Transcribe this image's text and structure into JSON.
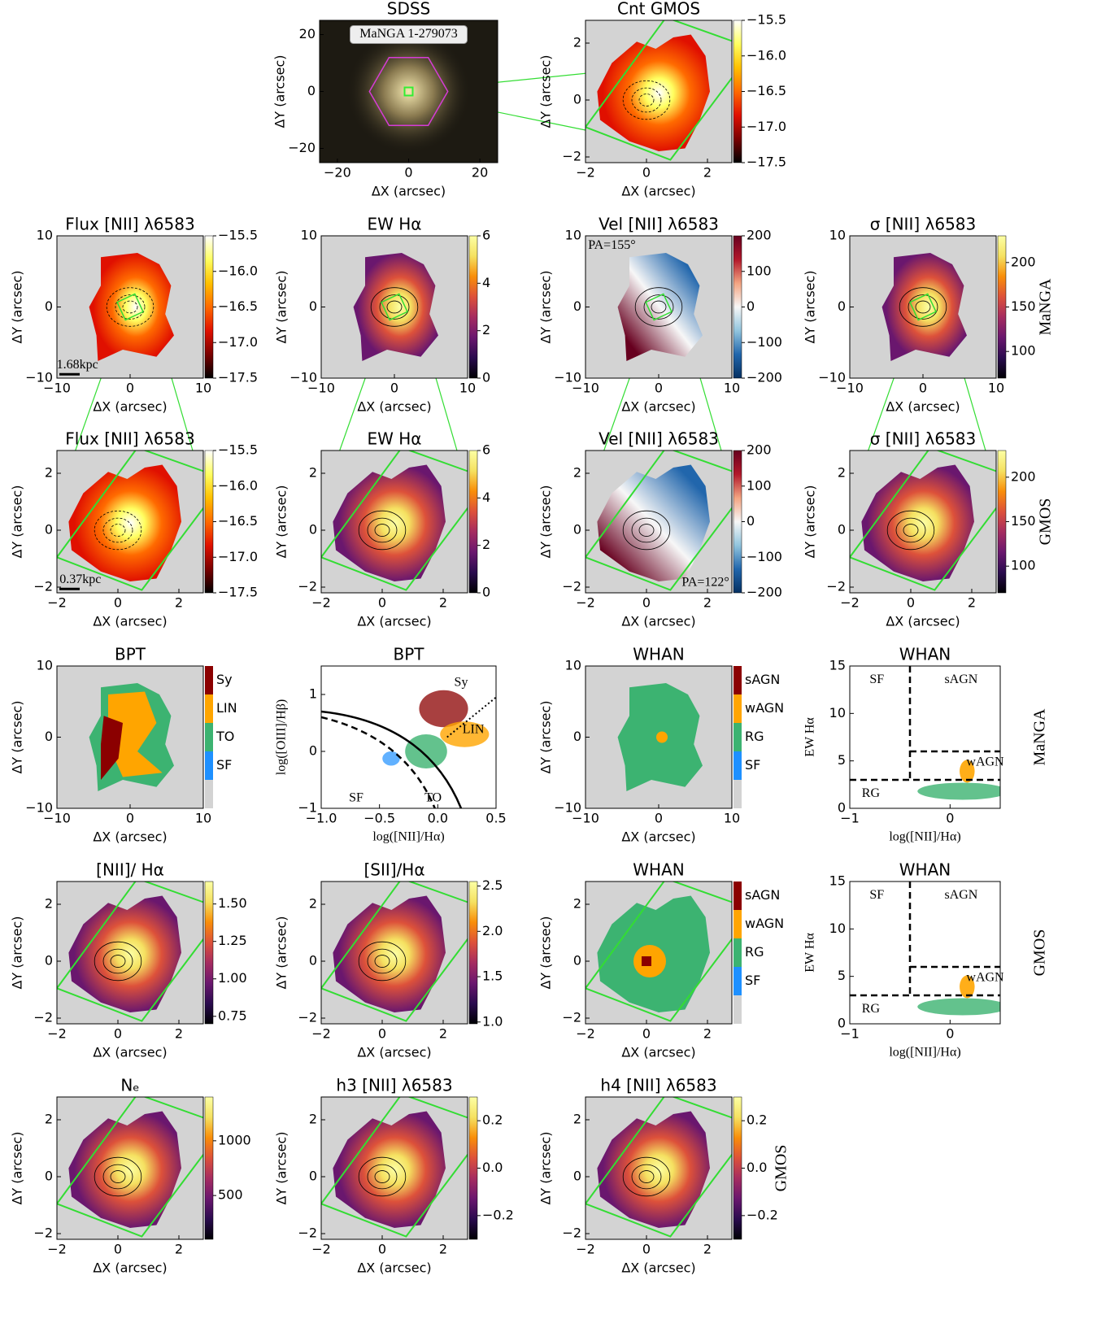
{
  "chart_data": [
    {
      "type": "image",
      "title": "SDSS",
      "xlabel": "ΔX (arcsec)",
      "ylabel": "ΔY (arcsec)",
      "xlim": [
        -25,
        25
      ],
      "ylim": [
        -25,
        25
      ],
      "xticks": [
        {
          "value": -20,
          "label": "−20"
        },
        0,
        20
      ],
      "yticks": [
        {
          "value": -20,
          "label": "−20"
        },
        0,
        20
      ],
      "annotations": [
        "MaNGA 1-279073"
      ]
    },
    {
      "type": "map",
      "title": "Cnt GMOS",
      "xlabel": "ΔX (arcsec)",
      "ylabel": "ΔY (arcsec)",
      "xlim": [
        -2,
        2.8
      ],
      "ylim": [
        -2.2,
        2.8
      ],
      "xticks": [
        {
          "value": -2,
          "label": "−2"
        },
        0,
        2
      ],
      "yticks": [
        {
          "value": -2,
          "label": "−2"
        },
        0,
        2
      ],
      "cmap": "heat",
      "colorbar": {
        "lim": [
          -17.5,
          -15.5
        ],
        "ticks": [
          {
            "value": -15.5,
            "label": "−15.5"
          },
          {
            "value": -16,
            "label": "−16.0"
          },
          {
            "value": -16.5,
            "label": "−16.5"
          },
          {
            "value": -17,
            "label": "−17.0"
          },
          {
            "value": -17.5,
            "label": "−17.5"
          }
        ]
      }
    },
    {
      "type": "map",
      "title": "Flux [NII] λ6583",
      "xlabel": "ΔX (arcsec)",
      "ylabel": "ΔY (arcsec)",
      "xlim": [
        -10,
        10
      ],
      "ylim": [
        -10,
        10
      ],
      "xticks": [
        {
          "value": -10,
          "label": "−10"
        },
        0,
        10
      ],
      "yticks": [
        {
          "value": -10,
          "label": "−10"
        },
        0,
        10
      ],
      "cmap": "heat",
      "colorbar": {
        "lim": [
          -17.5,
          -15.5
        ],
        "ticks": [
          {
            "value": -15.5,
            "label": "−15.5"
          },
          {
            "value": -16,
            "label": "−16.0"
          },
          {
            "value": -16.5,
            "label": "−16.5"
          },
          {
            "value": -17,
            "label": "−17.0"
          },
          {
            "value": -17.5,
            "label": "−17.5"
          }
        ]
      },
      "annotations": [
        "1.68kpc"
      ]
    },
    {
      "type": "map",
      "title": "EW Hα",
      "xlabel": "ΔX (arcsec)",
      "ylabel": "ΔY (arcsec)",
      "xlim": [
        -10,
        10
      ],
      "ylim": [
        -10,
        10
      ],
      "xticks": [
        {
          "value": -10,
          "label": "−10"
        },
        0,
        10
      ],
      "yticks": [
        {
          "value": -10,
          "label": "−10"
        },
        0,
        10
      ],
      "cmap": "inferno",
      "colorbar": {
        "lim": [
          0,
          6
        ],
        "ticks": [
          0,
          2,
          4,
          6
        ]
      }
    },
    {
      "type": "map",
      "title": "Vel [NII] λ6583",
      "xlabel": "ΔX (arcsec)",
      "ylabel": "ΔY (arcsec)",
      "xlim": [
        -10,
        10
      ],
      "ylim": [
        -10,
        10
      ],
      "xticks": [
        {
          "value": -10,
          "label": "−10"
        },
        0,
        10
      ],
      "yticks": [
        {
          "value": -10,
          "label": "−10"
        },
        0,
        10
      ],
      "cmap": "rdbu",
      "colorbar": {
        "lim": [
          -200,
          200
        ],
        "ticks": [
          {
            "value": -200,
            "label": "−200"
          },
          {
            "value": -100,
            "label": "−100"
          },
          0,
          100,
          200
        ]
      },
      "annotations": [
        "PA=155°"
      ]
    },
    {
      "type": "map",
      "title": "σ [NII] λ6583",
      "xlabel": "ΔX (arcsec)",
      "ylabel": "ΔY (arcsec)",
      "xlim": [
        -10,
        10
      ],
      "ylim": [
        -10,
        10
      ],
      "xticks": [
        {
          "value": -10,
          "label": "−10"
        },
        0,
        10
      ],
      "yticks": [
        {
          "value": -10,
          "label": "−10"
        },
        0,
        10
      ],
      "cmap": "inferno",
      "colorbar": {
        "lim": [
          70,
          230
        ],
        "ticks": [
          100,
          150,
          200
        ]
      },
      "side_label": "MaNGA"
    },
    {
      "type": "map",
      "title": "Flux [NII] λ6583",
      "xlabel": "ΔX (arcsec)",
      "ylabel": "ΔY (arcsec)",
      "xlim": [
        -2,
        2.8
      ],
      "ylim": [
        -2.2,
        2.8
      ],
      "xticks": [
        {
          "value": -2,
          "label": "−2"
        },
        0,
        2
      ],
      "yticks": [
        {
          "value": -2,
          "label": "−2"
        },
        0,
        2
      ],
      "cmap": "heat",
      "colorbar": {
        "lim": [
          -17.5,
          -15.5
        ],
        "ticks": [
          {
            "value": -15.5,
            "label": "−15.5"
          },
          {
            "value": -16,
            "label": "−16.0"
          },
          {
            "value": -16.5,
            "label": "−16.5"
          },
          {
            "value": -17,
            "label": "−17.0"
          },
          {
            "value": -17.5,
            "label": "−17.5"
          }
        ]
      },
      "annotations": [
        "0.37kpc"
      ]
    },
    {
      "type": "map",
      "title": "EW Hα",
      "xlabel": "ΔX (arcsec)",
      "ylabel": "ΔY (arcsec)",
      "xlim": [
        -2,
        2.8
      ],
      "ylim": [
        -2.2,
        2.8
      ],
      "xticks": [
        {
          "value": -2,
          "label": "−2"
        },
        0,
        2
      ],
      "yticks": [
        {
          "value": -2,
          "label": "−2"
        },
        0,
        2
      ],
      "cmap": "inferno",
      "colorbar": {
        "lim": [
          0,
          6
        ],
        "ticks": [
          0,
          2,
          4,
          6
        ]
      }
    },
    {
      "type": "map",
      "title": "Vel [NII] λ6583",
      "xlabel": "ΔX (arcsec)",
      "ylabel": "ΔY (arcsec)",
      "xlim": [
        -2,
        2.8
      ],
      "ylim": [
        -2.2,
        2.8
      ],
      "xticks": [
        {
          "value": -2,
          "label": "−2"
        },
        0,
        2
      ],
      "yticks": [
        {
          "value": -2,
          "label": "−2"
        },
        0,
        2
      ],
      "cmap": "rdbu",
      "colorbar": {
        "lim": [
          -200,
          200
        ],
        "ticks": [
          {
            "value": -200,
            "label": "−200"
          },
          {
            "value": -100,
            "label": "−100"
          },
          0,
          100,
          200
        ]
      },
      "annotations": [
        "PA=122°"
      ]
    },
    {
      "type": "map",
      "title": "σ [NII] λ6583",
      "xlabel": "ΔX (arcsec)",
      "ylabel": "ΔY (arcsec)",
      "xlim": [
        -2,
        2.8
      ],
      "ylim": [
        -2.2,
        2.8
      ],
      "xticks": [
        {
          "value": -2,
          "label": "−2"
        },
        0,
        2
      ],
      "yticks": [
        {
          "value": -2,
          "label": "−2"
        },
        0,
        2
      ],
      "cmap": "inferno",
      "colorbar": {
        "lim": [
          70,
          230
        ],
        "ticks": [
          100,
          150,
          200
        ]
      },
      "side_label": "GMOS"
    },
    {
      "type": "classmap",
      "title": "BPT",
      "xlabel": "ΔX (arcsec)",
      "ylabel": "ΔY (arcsec)",
      "xlim": [
        -10,
        10
      ],
      "ylim": [
        -10,
        10
      ],
      "xticks": [
        {
          "value": -10,
          "label": "−10"
        },
        0,
        10
      ],
      "yticks": [
        {
          "value": -10,
          "label": "−10"
        },
        0,
        10
      ],
      "classes": [
        {
          "name": "Sy",
          "color": "#8b0000"
        },
        {
          "name": "LIN",
          "color": "#ffa500"
        },
        {
          "name": "TO",
          "color": "#3cb371"
        },
        {
          "name": "SF",
          "color": "#1e90ff"
        }
      ]
    },
    {
      "type": "scatter",
      "title": "BPT",
      "xlabel": "log([NII]/Hα)",
      "ylabel": "log([OIII]/Hβ)",
      "xlim": [
        -1,
        0.5
      ],
      "ylim": [
        -1,
        1.5
      ],
      "xticks": [
        {
          "value": -1,
          "label": "−1.0"
        },
        {
          "value": -0.5,
          "label": "−0.5"
        },
        {
          "value": 0,
          "label": "0.0"
        },
        {
          "value": 0.5,
          "label": "0.5"
        }
      ],
      "yticks": [
        {
          "value": -1,
          "label": "−1"
        },
        0,
        1
      ],
      "annotations": [
        "Sy",
        "LIN",
        "SF",
        "TO"
      ]
    },
    {
      "type": "classmap",
      "title": "WHAN",
      "xlabel": "ΔX (arcsec)",
      "ylabel": "ΔY (arcsec)",
      "xlim": [
        -10,
        10
      ],
      "ylim": [
        -10,
        10
      ],
      "xticks": [
        {
          "value": -10,
          "label": "−10"
        },
        0,
        10
      ],
      "yticks": [
        {
          "value": -10,
          "label": "−10"
        },
        0,
        10
      ],
      "classes": [
        {
          "name": "sAGN",
          "color": "#8b0000"
        },
        {
          "name": "wAGN",
          "color": "#ffa500"
        },
        {
          "name": "RG",
          "color": "#3cb371"
        },
        {
          "name": "SF",
          "color": "#1e90ff"
        }
      ]
    },
    {
      "type": "scatter",
      "title": "WHAN",
      "xlabel": "log([NII]/Hα)",
      "ylabel": "EW Hα",
      "xlim": [
        -1,
        0.5
      ],
      "ylim": [
        0,
        15
      ],
      "xticks": [
        {
          "value": -1,
          "label": "−1"
        },
        0
      ],
      "yticks": [
        0,
        5,
        10,
        15
      ],
      "annotations": [
        "SF",
        "sAGN",
        "wAGN",
        "RG"
      ],
      "side_label": "MaNGA"
    },
    {
      "type": "map",
      "title": "[NII]/ Hα",
      "xlabel": "ΔX (arcsec)",
      "ylabel": "ΔY (arcsec)",
      "xlim": [
        -2,
        2.8
      ],
      "ylim": [
        -2.2,
        2.8
      ],
      "xticks": [
        {
          "value": -2,
          "label": "−2"
        },
        0,
        2
      ],
      "yticks": [
        {
          "value": -2,
          "label": "−2"
        },
        0,
        2
      ],
      "cmap": "inferno",
      "colorbar": {
        "lim": [
          0.7,
          1.65
        ],
        "ticks": [
          0.75,
          {
            "value": 1,
            "label": "1.00"
          },
          1.25,
          {
            "value": 1.5,
            "label": "1.50"
          }
        ]
      }
    },
    {
      "type": "map",
      "title": "[SII]/Hα",
      "xlabel": "ΔX (arcsec)",
      "ylabel": "ΔY (arcsec)",
      "xlim": [
        -2,
        2.8
      ],
      "ylim": [
        -2.2,
        2.8
      ],
      "xticks": [
        {
          "value": -2,
          "label": "−2"
        },
        0,
        2
      ],
      "yticks": [
        {
          "value": -2,
          "label": "−2"
        },
        0,
        2
      ],
      "cmap": "inferno",
      "colorbar": {
        "lim": [
          0.98,
          2.55
        ],
        "ticks": [
          {
            "value": 1,
            "label": "1.0"
          },
          1.5,
          {
            "value": 2,
            "label": "2.0"
          },
          2.5
        ]
      }
    },
    {
      "type": "classmap",
      "title": "WHAN",
      "xlabel": "ΔX (arcsec)",
      "ylabel": "ΔY (arcsec)",
      "xlim": [
        -2,
        2.8
      ],
      "ylim": [
        -2.2,
        2.8
      ],
      "xticks": [
        {
          "value": -2,
          "label": "−2"
        },
        0,
        2
      ],
      "yticks": [
        {
          "value": -2,
          "label": "−2"
        },
        0,
        2
      ],
      "classes": [
        {
          "name": "sAGN",
          "color": "#8b0000"
        },
        {
          "name": "wAGN",
          "color": "#ffa500"
        },
        {
          "name": "RG",
          "color": "#3cb371"
        },
        {
          "name": "SF",
          "color": "#1e90ff"
        }
      ]
    },
    {
      "type": "scatter",
      "title": "WHAN",
      "xlabel": "log([NII]/Hα)",
      "ylabel": "EW Hα",
      "xlim": [
        -1,
        0.5
      ],
      "ylim": [
        0,
        15
      ],
      "xticks": [
        {
          "value": -1,
          "label": "−1"
        },
        0
      ],
      "yticks": [
        0,
        5,
        10,
        15
      ],
      "annotations": [
        "SF",
        "sAGN",
        "wAGN",
        "RG"
      ],
      "side_label": "GMOS"
    },
    {
      "type": "map",
      "title": "Nₑ",
      "xlabel": "ΔX (arcsec)",
      "ylabel": "ΔY (arcsec)",
      "xlim": [
        -2,
        2.8
      ],
      "ylim": [
        -2.2,
        2.8
      ],
      "xticks": [
        {
          "value": -2,
          "label": "−2"
        },
        0,
        2
      ],
      "yticks": [
        {
          "value": -2,
          "label": "−2"
        },
        0,
        2
      ],
      "cmap": "inferno",
      "colorbar": {
        "lim": [
          100,
          1400
        ],
        "ticks": [
          500,
          1000
        ]
      }
    },
    {
      "type": "map",
      "title": "h3 [NII] λ6583",
      "xlabel": "ΔX (arcsec)",
      "ylabel": "ΔY (arcsec)",
      "xlim": [
        -2,
        2.8
      ],
      "ylim": [
        -2.2,
        2.8
      ],
      "xticks": [
        {
          "value": -2,
          "label": "−2"
        },
        0,
        2
      ],
      "yticks": [
        {
          "value": -2,
          "label": "−2"
        },
        0,
        2
      ],
      "cmap": "inferno",
      "colorbar": {
        "lim": [
          -0.3,
          0.3
        ],
        "ticks": [
          {
            "value": -0.2,
            "label": "−0.2"
          },
          {
            "value": 0,
            "label": "0.0"
          },
          0.2
        ]
      }
    },
    {
      "type": "map",
      "title": "h4 [NII] λ6583",
      "xlabel": "ΔX (arcsec)",
      "ylabel": "ΔY (arcsec)",
      "xlim": [
        -2,
        2.8
      ],
      "ylim": [
        -2.2,
        2.8
      ],
      "xticks": [
        {
          "value": -2,
          "label": "−2"
        },
        0,
        2
      ],
      "yticks": [
        {
          "value": -2,
          "label": "−2"
        },
        0,
        2
      ],
      "cmap": "inferno",
      "colorbar": {
        "lim": [
          -0.3,
          0.3
        ],
        "ticks": [
          {
            "value": -0.2,
            "label": "−0.2"
          },
          {
            "value": 0,
            "label": "0.0"
          },
          0.2
        ]
      },
      "side_label": "GMOS"
    }
  ]
}
